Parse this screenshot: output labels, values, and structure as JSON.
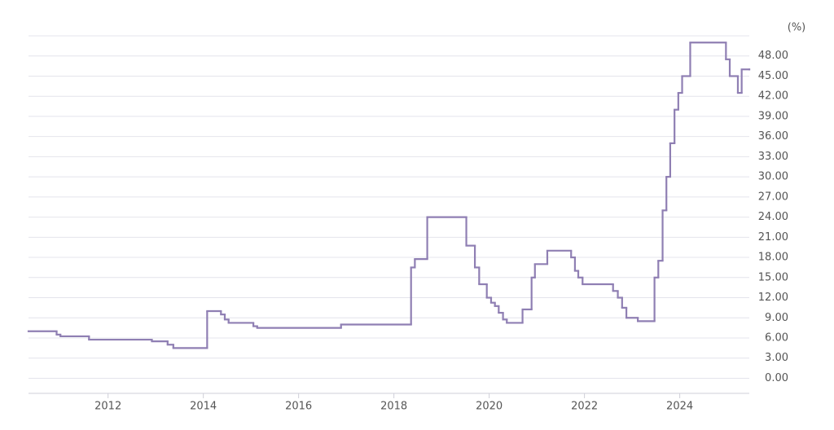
{
  "chart_data": {
    "type": "step-line",
    "y_label": "(%)",
    "xlim": [
      2010.33,
      2025.46
    ],
    "xticks": [
      2012,
      2014,
      2016,
      2018,
      2020,
      2022,
      2024
    ],
    "ylim": [
      -2.25,
      51
    ],
    "yticks": [
      {
        "value": 0,
        "label": "0.00"
      },
      {
        "value": 3,
        "label": "3.00"
      },
      {
        "value": 6,
        "label": "6.00"
      },
      {
        "value": 9,
        "label": "9.00"
      },
      {
        "value": 12,
        "label": "12.00"
      },
      {
        "value": 15,
        "label": "15.00"
      },
      {
        "value": 18,
        "label": "18.00"
      },
      {
        "value": 21,
        "label": "21.00"
      },
      {
        "value": 24,
        "label": "24.00"
      },
      {
        "value": 27,
        "label": "27.00"
      },
      {
        "value": 30,
        "label": "30.00"
      },
      {
        "value": 33,
        "label": "33.00"
      },
      {
        "value": 36,
        "label": "36.00"
      },
      {
        "value": 39,
        "label": "39.00"
      },
      {
        "value": 42,
        "label": "42.00"
      },
      {
        "value": 45,
        "label": "45.00"
      },
      {
        "value": 48,
        "label": "48.00"
      }
    ],
    "grid": true,
    "color": "#8f7fb3",
    "x": [
      2010.33,
      2010.92,
      2011.0,
      2011.6,
      2012.92,
      2013.25,
      2013.37,
      2014.08,
      2014.37,
      2014.45,
      2014.53,
      2015.05,
      2015.13,
      2016.89,
      2018.36,
      2018.44,
      2018.7,
      2019.52,
      2019.7,
      2019.79,
      2019.95,
      2020.04,
      2020.12,
      2020.2,
      2020.29,
      2020.37,
      2020.7,
      2020.89,
      2020.96,
      2021.22,
      2021.72,
      2021.8,
      2021.87,
      2021.96,
      2022.6,
      2022.7,
      2022.79,
      2022.88,
      2023.12,
      2023.47,
      2023.55,
      2023.64,
      2023.72,
      2023.8,
      2023.89,
      2023.97,
      2024.05,
      2024.22,
      2024.97,
      2025.05,
      2025.22,
      2025.3,
      2025.46
    ],
    "values": [
      7.0,
      6.5,
      6.25,
      5.75,
      5.5,
      5.0,
      4.5,
      10.0,
      9.5,
      8.75,
      8.25,
      7.75,
      7.5,
      8.0,
      16.5,
      17.75,
      24.0,
      19.75,
      16.5,
      14.0,
      12.0,
      11.25,
      10.75,
      9.75,
      8.75,
      8.25,
      10.25,
      15.0,
      17.0,
      19.0,
      18.0,
      16.0,
      15.0,
      14.0,
      13.0,
      12.0,
      10.5,
      9.0,
      8.5,
      15.0,
      17.5,
      25.0,
      30.0,
      35.0,
      40.0,
      42.5,
      45.0,
      50.0,
      47.5,
      45.0,
      42.5,
      46.0,
      46.0
    ]
  }
}
